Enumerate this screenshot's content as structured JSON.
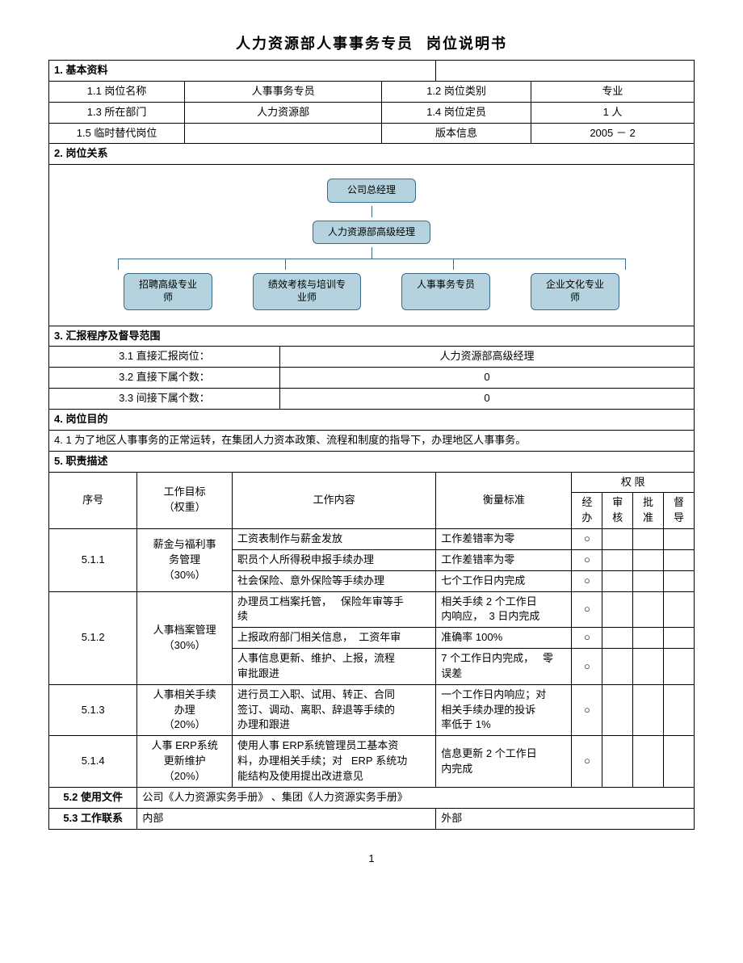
{
  "title_left": "人力资源部人事事务专员",
  "title_right": "岗位说明书",
  "colors": {
    "node_bg": "#b4d3de",
    "node_border": "#3b6b88",
    "page_bg": "#ffffff",
    "text": "#000000",
    "border": "#000000"
  },
  "section1": {
    "header": "1.    基本资料",
    "row1": {
      "k1": "1.1 岗位名称",
      "v1": "人事事务专员",
      "k2": "1.2 岗位类别",
      "v2": "专业"
    },
    "row2": {
      "k1": "1.3 所在部门",
      "v1": "人力资源部",
      "k2": "1.4 岗位定员",
      "v2": "1 人"
    },
    "row3": {
      "k1": "1.5 临时替代岗位",
      "v1": "",
      "k2": "版本信息",
      "v2": "2005 － 2"
    }
  },
  "section2": {
    "header": "2.    岗位关系",
    "org": {
      "top": "公司总经理",
      "mid": "人力资源部高级经理",
      "children": [
        "招聘高级专业\n师",
        "绩效考核与培训专\n业师",
        "人事事务专员",
        "企业文化专业\n师"
      ]
    }
  },
  "section3": {
    "header": "3.    汇报程序及督导范围",
    "rows": [
      {
        "label": "3.1 直接汇报岗位：",
        "value": "人力资源部高级经理"
      },
      {
        "label": "3.2 直接下属个数：",
        "value": "0"
      },
      {
        "label": "3.3 间接下属个数：",
        "value": "0"
      }
    ]
  },
  "section4": {
    "header": "4.    岗位目的",
    "text": "4. 1  为了地区人事事务的正常运转，在集团人力资本政策、流程和制度的指导下，办理地区人事事务。"
  },
  "section5": {
    "header": "5.    职责描述",
    "head": {
      "seq": "序号",
      "goal": "工作目标\n（权重）",
      "content": "工作内容",
      "standard": "衡量标准",
      "auth": "权        限",
      "a1": "经\n办",
      "a2": "审\n核",
      "a3": "批\n准",
      "a4": "督\n导"
    },
    "rows": [
      {
        "seq": "5.1.1",
        "goal": "薪金与福利事\n务管理\n（30%）",
        "items": [
          {
            "content": "工资表制作与薪金发放",
            "standard": "工作差错率为零",
            "marks": [
              "○",
              "",
              "",
              ""
            ]
          },
          {
            "content": "职员个人所得税申报手续办理",
            "standard": "工作差错率为零",
            "marks": [
              "○",
              "",
              "",
              ""
            ]
          },
          {
            "content": "社会保险、意外保险等手续办理",
            "standard": "七个工作日内完成",
            "marks": [
              "○",
              "",
              "",
              ""
            ]
          }
        ]
      },
      {
        "seq": "5.1.2",
        "goal": "人事档案管理\n（30%）",
        "items": [
          {
            "content": "办理员工档案托管，   保险年审等手\n续",
            "standard": "相关手续 2 个工作日\n内响应，  3 日内完成",
            "marks": [
              "○",
              "",
              "",
              ""
            ]
          },
          {
            "content": "上报政府部门相关信息，  工资年审",
            "standard": "准确率 100%",
            "marks": [
              "○",
              "",
              "",
              ""
            ]
          },
          {
            "content": "人事信息更新、维护、上报，流程\n审批跟进",
            "standard": "7 个工作日内完成，   零\n误差",
            "marks": [
              "○",
              "",
              "",
              ""
            ]
          }
        ]
      },
      {
        "seq": "5.1.3",
        "goal": "人事相关手续\n办理\n（20%）",
        "items": [
          {
            "content": "进行员工入职、试用、转正、合同\n签订、调动、离职、辞退等手续的\n办理和跟进",
            "standard": "一个工作日内响应；对\n相关手续办理的投诉\n率低于 1%",
            "marks": [
              "○",
              "",
              "",
              ""
            ]
          }
        ]
      },
      {
        "seq": "5.1.4",
        "goal": "人事 ERP系统\n更新维护\n（20%）",
        "items": [
          {
            "content": "使用人事 ERP系统管理员工基本资\n料，办理相关手续；对   ERP 系统功\n能结构及使用提出改进意见",
            "standard": "信息更新 2 个工作日\n内完成",
            "marks": [
              "○",
              "",
              "",
              ""
            ]
          }
        ]
      }
    ],
    "docs": {
      "label": "5.2 使用文件",
      "value": "公司《人力资源实务手册》  、集团《人力资源实务手册》"
    },
    "contact": {
      "label": "5.3 工作联系",
      "inside": "内部",
      "outside": "外部"
    }
  },
  "page_number": "1"
}
